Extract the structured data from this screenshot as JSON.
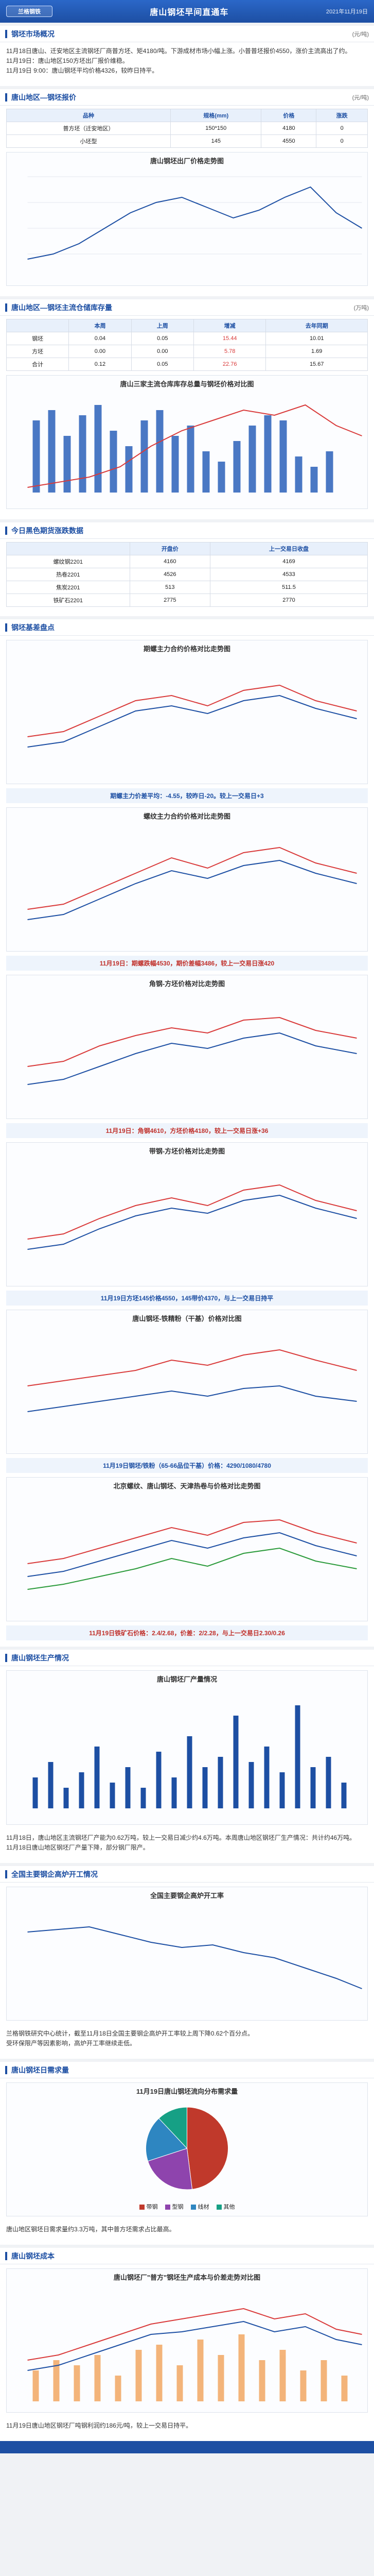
{
  "header": {
    "logo": "兰格钢铁",
    "title": "唐山钢坯早间直通车",
    "date": "2021年11月19日"
  },
  "market": {
    "title": "钢坯市场概况",
    "unit": "(元/吨)",
    "lines": [
      "11月18日唐山、迁安地区主流钢坯厂商普方坯、矩4180/吨。下游成材市场小幅上涨。小普普坯报价4550，涨价主流高出了约。",
      "11月19日：唐山地区150方坯出厂报价维稳。",
      "11月19日 9:00：唐山钢坯平均价格4326，较昨日持平。"
    ]
  },
  "price_table": {
    "title": "唐山地区—钢坯报价",
    "unit": "(元/吨)",
    "headers": [
      "品种",
      "规格(mm)",
      "价格",
      "涨跌"
    ],
    "rows": [
      [
        "普方坯（迁安地区）",
        "150*150",
        "4180",
        "0"
      ],
      [
        "小坯型",
        "145",
        "4550",
        "0"
      ]
    ]
  },
  "price_chart": {
    "title": "唐山钢坯出厂价格走势图"
  },
  "inventory": {
    "title": "唐山地区—钢坯主流仓储库存量",
    "unit": "(万吨)",
    "headers": [
      "",
      "本周",
      "上周",
      "增减",
      "去年同期"
    ],
    "rows": [
      [
        "钢坯",
        "0.04",
        "0.05",
        "15.44",
        "10.01"
      ],
      [
        "方坯",
        "0.00",
        "0.00",
        "5.78",
        "1.69"
      ],
      [
        "合计",
        "0.12",
        "0.05",
        "22.76",
        "15.67"
      ]
    ]
  },
  "inventory_chart": {
    "title": "唐山三家主流仓库库存总量与钢坯价格对比图"
  },
  "futures": {
    "title": "今日黑色期货涨跌数据",
    "headers": [
      "",
      "开盘价",
      "上一交易日收盘"
    ],
    "rows": [
      [
        "螺纹钢2201",
        "4160",
        "4169"
      ],
      [
        "热卷2201",
        "4526",
        "4533"
      ],
      [
        "焦炭2201",
        "513",
        "511.5"
      ],
      [
        "铁矿石2201",
        "2775",
        "2770"
      ]
    ]
  },
  "basis": {
    "title": "钢坯基差盘点",
    "chart1_title": "期螺主力合约价格对比走势图",
    "chart1_note": "期螺主力价差平均：-4.55，较昨日-20。较上一交易日+3",
    "chart2_title": "螺纹主力合约价格对比走势图",
    "chart2_note": "11月19日：期螺跌幅4530，期价差幅3486，较上一交易日涨420",
    "chart3_title": "角钢-方坯价格对比走势图",
    "chart3_note": "11月19日：角钢4610，方坯价格4180，较上一交易日涨+36",
    "chart4_title": "带钢-方坯价格对比走势图",
    "chart4_note": "11月19日方坯145价格4550，145带价4370，与上一交易日持平",
    "chart5_title": "唐山钢坯-铁精粉（干基）价格对比图",
    "chart5_note": "11月19日钢坯/铁粉（65-66品位干基）价格：4290/1080/4780",
    "chart6_title": "北京螺纹、唐山钢坯、天津热卷与价格对比走势图",
    "chart6_note": "11月19日铁矿石价格：2.4/2.68，价差：2/2.28，与上一交易日2.30/0.26"
  },
  "production": {
    "title": "唐山钢坯生产情况",
    "chart_title": "唐山钢坯厂产量情况",
    "text": "11月18日，唐山地区主流钢坯厂产能为0.62万吨，较上一交易日减少约4.6万吨。本周唐山地区钢坯厂生产情况：共计约46万吨。",
    "text2": "11月18日唐山地区钢坯厂产量下降，部分钢厂限产。"
  },
  "operating": {
    "title": "全国主要钢企高炉开工情况",
    "chart_title": "全国主要钢企高炉开工率",
    "text": "兰格钢铁研究中心统计，截至11月18日全国主要钢企高炉开工率较上周下降0.62个百分点。",
    "text2": "受环保限产等因素影响，高炉开工率继续走低。"
  },
  "demand": {
    "title": "唐山钢坯日需求量",
    "chart_title": "11月19日唐山钢坯流向分布需求量",
    "text": "唐山地区钢坯日需求量约3.3万吨，其中普方坯需求占比最高。",
    "labels": [
      "带钢",
      "型钢",
      "线材",
      "其他"
    ],
    "values": [
      48,
      22,
      18,
      12
    ],
    "colors": [
      "#c0392b",
      "#8e44ad",
      "#2e86c1",
      "#16a085"
    ]
  },
  "cost": {
    "title": "唐山钢坯成本",
    "chart_title": "唐山钢坯厂\"普方\"钢坯生产成本与价差走势对比图",
    "text": "11月19日唐山地区钢坯厂吨钢利润约186元/吨，较上一交易日持平。"
  }
}
